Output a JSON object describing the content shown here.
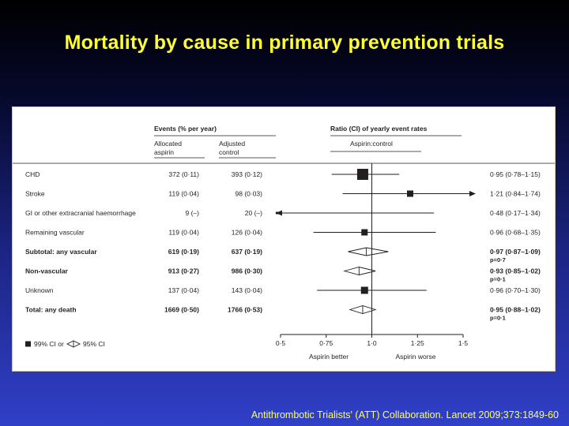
{
  "slide": {
    "title": "Mortality by cause in primary prevention trials",
    "citation": "Antithrombotic Trialists' (ATT) Collaboration. Lancet 2009;373:1849-60"
  },
  "colors": {
    "title": "#ffff33",
    "citation": "#ffff66",
    "marker": "#231f20",
    "panel_border": "#d9c7a6"
  },
  "chart_data": {
    "type": "forest",
    "header": {
      "events": "Events (% per year)",
      "events_unit": "(% per year)",
      "allocated": [
        "Allocated",
        "aspirin"
      ],
      "adjusted": [
        "Adjusted",
        "control"
      ],
      "ratio": "Ratio (CI) of yearly event rates",
      "ratio_sub": "Aspirin:control"
    },
    "rows": [
      {
        "label": "CHD",
        "aspirin": "372 (0·11)",
        "control": "393 (0·12)",
        "ratio": 0.95,
        "lo": 0.78,
        "hi": 1.15,
        "ci_text": "0·95 (0·78–1·15)",
        "p": "",
        "kind": "square",
        "size": 14,
        "bold": false,
        "arrow_left": false,
        "arrow_right": false
      },
      {
        "label": "Stroke",
        "aspirin": "119 (0·04)",
        "control": "98 (0·03)",
        "ratio": 1.21,
        "lo": 0.84,
        "hi": 1.74,
        "ci_text": "1·21 (0·84–1·74)",
        "p": "",
        "kind": "square",
        "size": 8,
        "bold": false,
        "arrow_left": false,
        "arrow_right": true
      },
      {
        "label": "GI or other extracranial haemorrhage",
        "aspirin": "9 (–)",
        "control": "20 (–)",
        "ratio": 0.48,
        "lo": 0.17,
        "hi": 1.34,
        "ci_text": "0·48 (0·17–1·34)",
        "p": "",
        "kind": "square",
        "size": 3,
        "bold": false,
        "arrow_left": true,
        "arrow_right": false
      },
      {
        "label": "Remaining vascular",
        "aspirin": "119 (0·04)",
        "control": "126 (0·04)",
        "ratio": 0.96,
        "lo": 0.68,
        "hi": 1.35,
        "ci_text": "0·96 (0·68–1·35)",
        "p": "",
        "kind": "square",
        "size": 8,
        "bold": false,
        "arrow_left": false,
        "arrow_right": false
      },
      {
        "label": "Subtotal: any vascular",
        "aspirin": "619 (0·19)",
        "control": "637 (0·19)",
        "ratio": 0.97,
        "lo": 0.87,
        "hi": 1.09,
        "ci_text": "0·97 (0·87–1·09)",
        "p": "p=0·7",
        "kind": "diamond",
        "size": 0,
        "bold": true,
        "arrow_left": false,
        "arrow_right": false
      },
      {
        "label": "Non-vascular",
        "aspirin": "913 (0·27)",
        "control": "986 (0·30)",
        "ratio": 0.93,
        "lo": 0.85,
        "hi": 1.02,
        "ci_text": "0·93 (0·85–1·02)",
        "p": "p=0·1",
        "kind": "diamond",
        "size": 0,
        "bold": true,
        "arrow_left": false,
        "arrow_right": false
      },
      {
        "label": "Unknown",
        "aspirin": "137 (0·04)",
        "control": "143 (0·04)",
        "ratio": 0.96,
        "lo": 0.7,
        "hi": 1.3,
        "ci_text": "0·96 (0·70–1·30)",
        "p": "",
        "kind": "square",
        "size": 9,
        "bold": false,
        "arrow_left": false,
        "arrow_right": false
      },
      {
        "label": "Total: any death",
        "aspirin": "1669 (0·50)",
        "control": "1766 (0·53)",
        "ratio": 0.95,
        "lo": 0.88,
        "hi": 1.02,
        "ci_text": "0·95 (0·88–1·02)",
        "p": "p=0·1",
        "kind": "diamond",
        "size": 0,
        "bold": true,
        "arrow_left": false,
        "arrow_right": false
      }
    ],
    "x_axis": {
      "ticks": [
        0.5,
        0.75,
        1.0,
        1.25,
        1.5
      ],
      "tick_labels": [
        "0·5",
        "0·75",
        "1·0",
        "1·25",
        "1·5"
      ],
      "range": [
        0.5,
        1.5
      ],
      "reference": 1.0,
      "left_label": "Aspirin better",
      "right_label": "Aspirin worse"
    },
    "legend": {
      "square_label": "99% CI or",
      "diamond_label": "95% CI"
    }
  }
}
